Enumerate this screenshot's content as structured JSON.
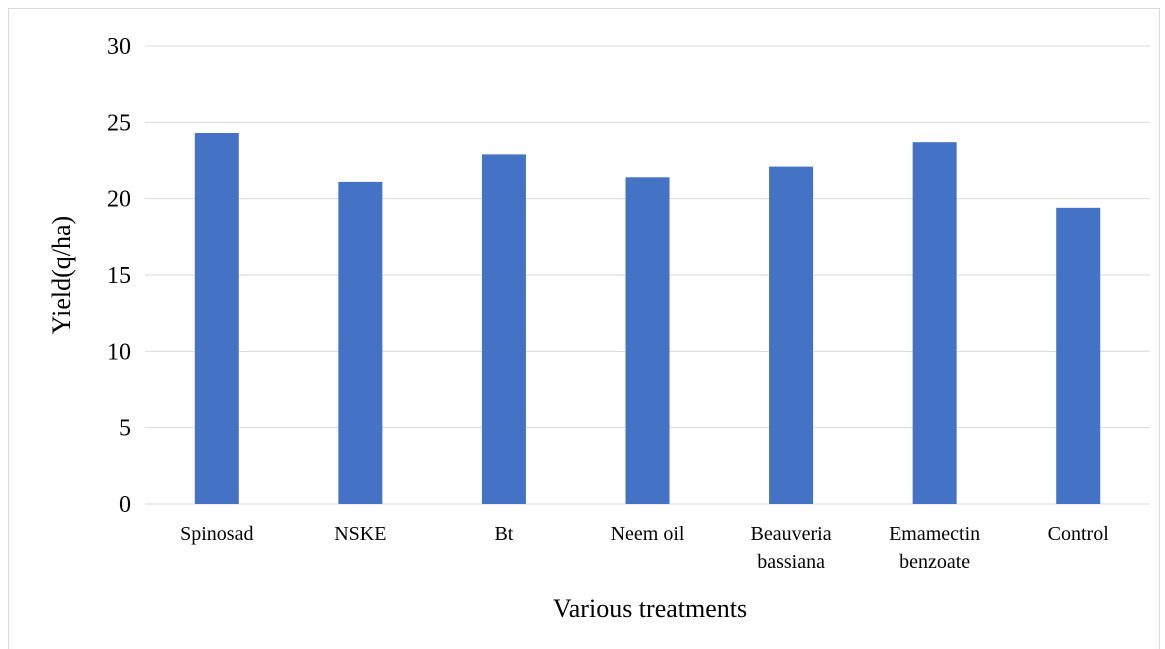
{
  "chart_data": {
    "type": "bar",
    "categories": [
      [
        "Spinosad"
      ],
      [
        "NSKE"
      ],
      [
        "Bt"
      ],
      [
        "Neem oil"
      ],
      [
        "Beauveria",
        "bassiana"
      ],
      [
        "Emamectin",
        "benzoate"
      ],
      [
        "Control"
      ]
    ],
    "values": [
      24.3,
      21.1,
      22.9,
      21.4,
      22.1,
      23.7,
      19.4
    ],
    "title": "",
    "xlabel": "Various treatments",
    "ylabel": "Yield(q/ha)",
    "ylim": [
      0,
      30
    ],
    "yticks": [
      "0",
      "5",
      "10",
      "15",
      "20",
      "25",
      "30"
    ],
    "grid": true,
    "legend": "none",
    "bar_color": "#4472C4",
    "grid_color": "#d9d9d9"
  }
}
